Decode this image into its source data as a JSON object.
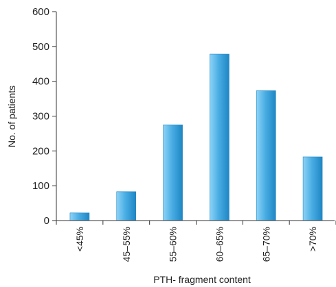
{
  "chart_data": {
    "type": "bar",
    "categories": [
      "<45%",
      "45–55%",
      "55–60%",
      "60–65%",
      "65–70%",
      ">70%"
    ],
    "values": [
      22,
      83,
      275,
      478,
      373,
      183
    ],
    "xlabel": "PTH- fragment content",
    "ylabel": "No. of patients",
    "ylim": [
      0,
      600
    ],
    "yticks": [
      0,
      100,
      200,
      300,
      400,
      500,
      600
    ],
    "grid": false,
    "legend": "none",
    "bar_color": "#4aaee4",
    "bar_color_light": "#8ed3f7",
    "bar_color_dark": "#1f86c4"
  }
}
